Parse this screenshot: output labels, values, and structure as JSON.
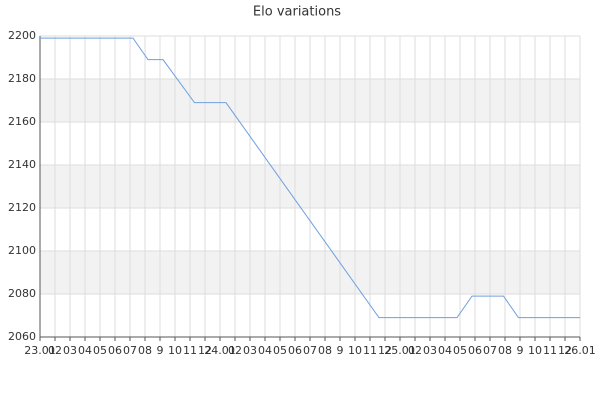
{
  "chart_data": {
    "type": "line",
    "title": "Elo variations",
    "x": [
      0,
      6.2,
      7.2,
      8.2,
      10.3,
      12.4,
      22.6,
      27.8,
      28.8,
      30.9,
      31.9,
      36
    ],
    "values": [
      2199,
      2199,
      2189,
      2189,
      2169,
      2169,
      2069,
      2069,
      2079,
      2079,
      2069,
      2069
    ],
    "color": "#6f9fe0",
    "xlim": [
      0,
      36
    ],
    "xticks": [
      {
        "value": 0,
        "label": "23.01"
      },
      {
        "value": 1,
        "label": "02"
      },
      {
        "value": 2,
        "label": "03"
      },
      {
        "value": 3,
        "label": "04"
      },
      {
        "value": 4,
        "label": "05"
      },
      {
        "value": 5,
        "label": "06"
      },
      {
        "value": 6,
        "label": "07"
      },
      {
        "value": 7,
        "label": "08"
      },
      {
        "value": 8,
        "label": "9"
      },
      {
        "value": 9,
        "label": "10"
      },
      {
        "value": 10,
        "label": "11"
      },
      {
        "value": 11,
        "label": "12"
      },
      {
        "value": 12,
        "label": "24.01"
      },
      {
        "value": 13,
        "label": "02"
      },
      {
        "value": 14,
        "label": "03"
      },
      {
        "value": 15,
        "label": "04"
      },
      {
        "value": 16,
        "label": "05"
      },
      {
        "value": 17,
        "label": "06"
      },
      {
        "value": 18,
        "label": "07"
      },
      {
        "value": 19,
        "label": "08"
      },
      {
        "value": 20,
        "label": "9"
      },
      {
        "value": 21,
        "label": "10"
      },
      {
        "value": 22,
        "label": "11"
      },
      {
        "value": 23,
        "label": "12"
      },
      {
        "value": 24,
        "label": "25.01"
      },
      {
        "value": 25,
        "label": "02"
      },
      {
        "value": 26,
        "label": "03"
      },
      {
        "value": 27,
        "label": "04"
      },
      {
        "value": 28,
        "label": "05"
      },
      {
        "value": 29,
        "label": "06"
      },
      {
        "value": 30,
        "label": "07"
      },
      {
        "value": 31,
        "label": "08"
      },
      {
        "value": 32,
        "label": "9"
      },
      {
        "value": 33,
        "label": "10"
      },
      {
        "value": 34,
        "label": "11"
      },
      {
        "value": 35,
        "label": "12"
      },
      {
        "value": 36,
        "label": "26.01"
      }
    ],
    "ylim": [
      2060,
      2200
    ],
    "yticks": [
      2060,
      2080,
      2100,
      2120,
      2140,
      2160,
      2180,
      2200
    ],
    "grid": true
  }
}
